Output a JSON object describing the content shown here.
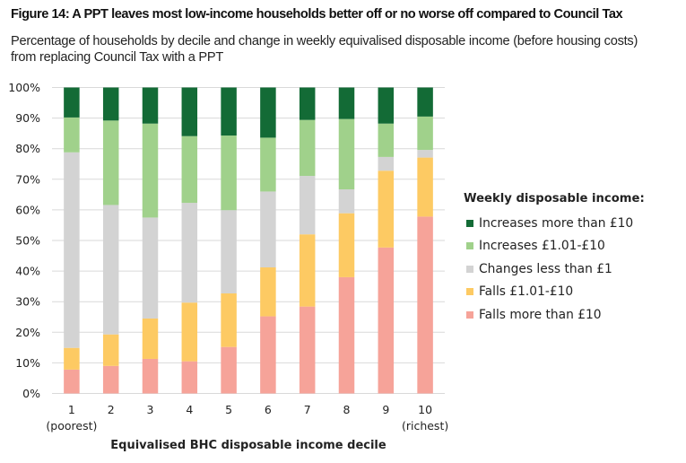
{
  "header": {
    "title": "Figure 14: A PPT leaves most low-income households better off or no worse off compared to Council Tax",
    "subtitle": "Percentage of households by decile and change in weekly equivalised disposable income (before housing costs) from replacing Council Tax with a PPT"
  },
  "chart_data": {
    "type": "bar",
    "stacked": true,
    "title": "Figure 14: A PPT leaves most low-income households better off or no worse off compared to Council Tax",
    "subtitle": "Percentage of households by decile and change in weekly equivalised disposable income (before housing costs) from replacing Council Tax with a PPT",
    "xlabel": "Equivalised BHC disposable income decile",
    "ylabel": "",
    "ylim": [
      0,
      100
    ],
    "yticks": [
      "0%",
      "10%",
      "20%",
      "30%",
      "40%",
      "50%",
      "60%",
      "70%",
      "80%",
      "90%",
      "100%"
    ],
    "categories": [
      "1",
      "2",
      "3",
      "4",
      "5",
      "6",
      "7",
      "8",
      "9",
      "10"
    ],
    "category_sublabels": [
      "(poorest)",
      "",
      "",
      "",
      "",
      "",
      "",
      "",
      "",
      "(richest)"
    ],
    "grid": true,
    "legend_title": "Weekly disposable income:",
    "legend_position": "right",
    "series": [
      {
        "name": "Falls more than £10",
        "color": "#f6a399",
        "values": [
          7.8,
          9.0,
          11.3,
          10.5,
          15.2,
          25.2,
          28.4,
          38.0,
          47.7,
          57.8
        ]
      },
      {
        "name": "Falls £1.01-£10",
        "color": "#fdca63",
        "values": [
          7.1,
          10.3,
          13.2,
          19.2,
          17.5,
          16.0,
          23.6,
          20.9,
          25.1,
          19.3
        ]
      },
      {
        "name": "Changes less than £1",
        "color": "#d3d3d3",
        "values": [
          63.9,
          42.3,
          33.0,
          32.6,
          27.2,
          24.8,
          19.1,
          7.8,
          4.5,
          2.5
        ]
      },
      {
        "name": "Increases £1.01-£10",
        "color": "#a0d18b",
        "values": [
          11.4,
          27.6,
          30.7,
          21.8,
          24.4,
          17.6,
          18.3,
          23.0,
          10.9,
          10.9
        ]
      },
      {
        "name": "Increases more than £10",
        "color": "#136b36",
        "values": [
          9.8,
          10.8,
          11.8,
          15.9,
          15.7,
          16.4,
          10.6,
          10.3,
          11.8,
          9.5
        ]
      }
    ],
    "legend_order": [
      "Increases more than £10",
      "Increases £1.01-£10",
      "Changes less than £1",
      "Falls £1.01-£10",
      "Falls more than £10"
    ]
  }
}
